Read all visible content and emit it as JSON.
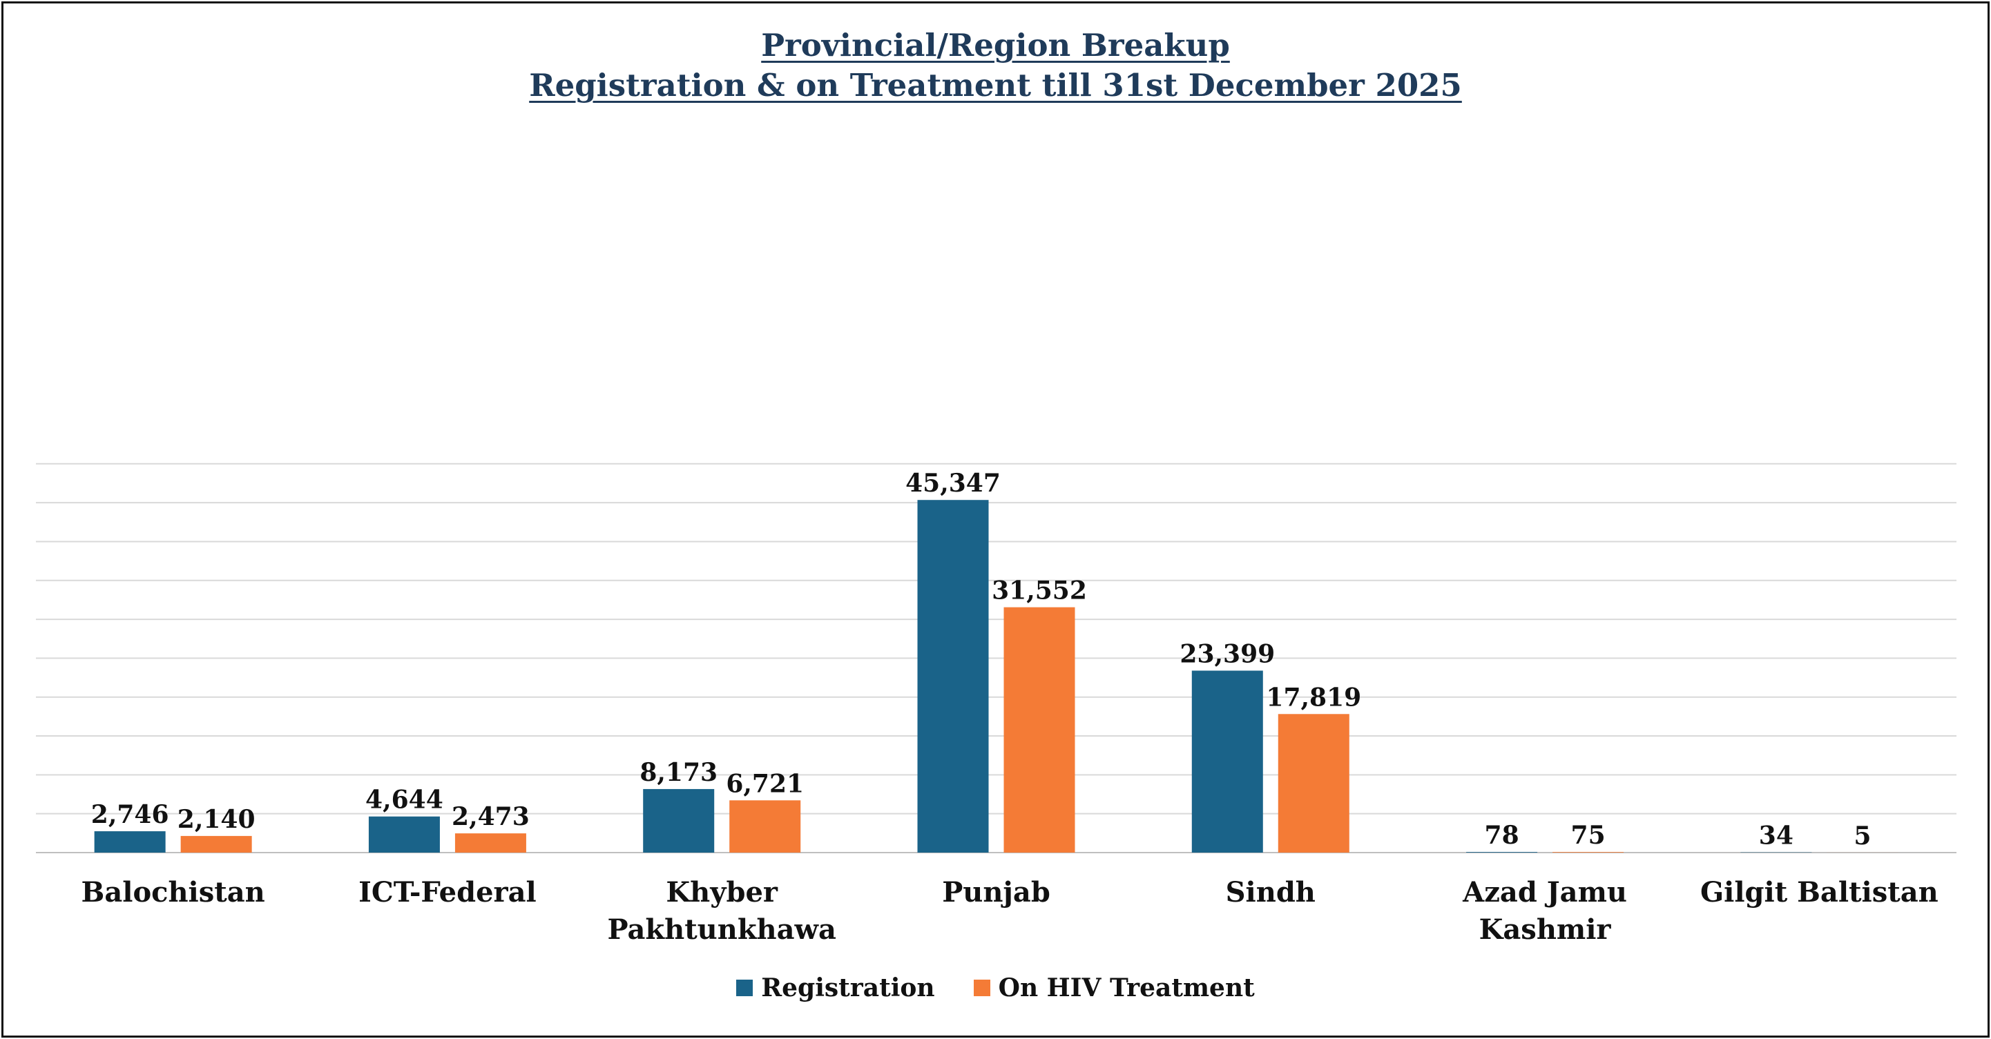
{
  "colors": {
    "registration": "#1a6389",
    "treatment": "#f47b36",
    "gridline": "#d9d9d9",
    "axis": "#bfbfbf",
    "title": "#1f3b5a",
    "text": "#111111"
  },
  "chart_data": {
    "type": "bar",
    "title_line_1": "Provincial/Region Breakup",
    "title_line_2": "Registration & on Treatment till 31st December 2025",
    "xlabel": "",
    "ylabel": "",
    "ylim": [
      0,
      50000
    ],
    "grid": true,
    "legend_position": "bottom-center",
    "categories": [
      [
        "Balochistan"
      ],
      [
        "ICT-Federal"
      ],
      [
        "Khyber",
        "Pakhtunkhawa"
      ],
      [
        "Punjab"
      ],
      [
        "Sindh"
      ],
      [
        "Azad Jamu",
        "Kashmir"
      ],
      [
        "Gilgit Baltistan"
      ]
    ],
    "series": [
      {
        "name": "Registration",
        "color_key": "registration",
        "values": [
          2746,
          4644,
          8173,
          45347,
          23399,
          78,
          34
        ],
        "labels": [
          "2,746",
          "4,644",
          "8,173",
          "45,347",
          "23,399",
          "78",
          "34"
        ]
      },
      {
        "name": "On HIV Treatment",
        "color_key": "treatment",
        "values": [
          2140,
          2473,
          6721,
          31552,
          17819,
          75,
          5
        ],
        "labels": [
          "2,140",
          "2,473",
          "6,721",
          "31,552",
          "17,819",
          "75",
          "5"
        ]
      }
    ]
  }
}
